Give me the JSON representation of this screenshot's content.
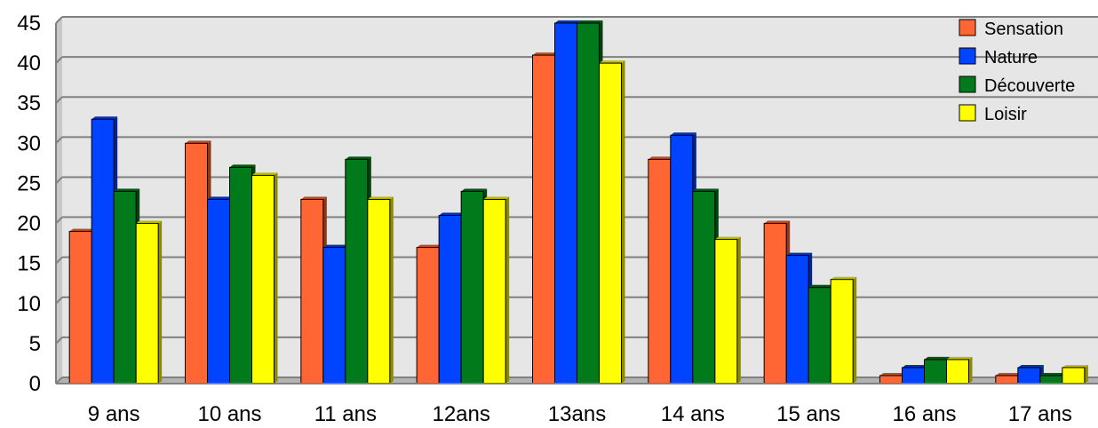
{
  "chart_data": {
    "type": "bar",
    "title": "",
    "xlabel": "",
    "ylabel": "",
    "categories": [
      "9 ans",
      "10 ans",
      "11 ans",
      "12ans",
      "13ans",
      "14 ans",
      "15 ans",
      "16 ans",
      "17 ans"
    ],
    "series": [
      {
        "name": "Sensation",
        "color": "#ff6633",
        "values": [
          19,
          30,
          23,
          17,
          41,
          28,
          20,
          1,
          1
        ]
      },
      {
        "name": "Nature",
        "color": "#0044ff",
        "values": [
          33,
          23,
          17,
          21,
          45,
          31,
          16,
          2,
          2
        ]
      },
      {
        "name": "Découverte",
        "color": "#007a1a",
        "values": [
          24,
          27,
          28,
          24,
          45,
          24,
          12,
          3,
          1
        ]
      },
      {
        "name": "Loisir",
        "color": "#ffff00",
        "values": [
          20,
          26,
          23,
          23,
          40,
          18,
          13,
          3,
          2
        ]
      }
    ],
    "ylim": [
      0,
      45
    ],
    "yticks": [
      0,
      5,
      10,
      15,
      20,
      25,
      30,
      35,
      40,
      45
    ],
    "grid": true,
    "legend_position": "top-right"
  }
}
